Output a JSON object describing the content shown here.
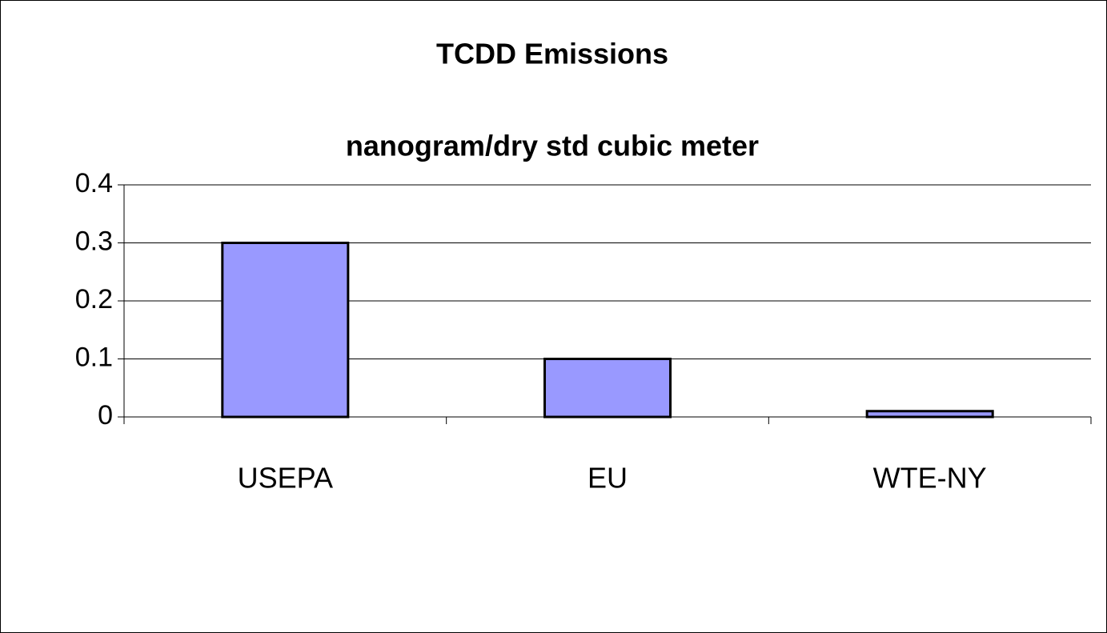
{
  "chart_data": {
    "type": "bar",
    "title": "TCDD Emissions",
    "subtitle": "nanogram/dry std cubic meter",
    "categories": [
      "USEPA",
      "EU",
      "WTE-NY"
    ],
    "values": [
      0.3,
      0.1,
      0.01
    ],
    "color": "#9999ff",
    "ylim": [
      0,
      0.4
    ],
    "yticks": [
      0,
      0.1,
      0.2,
      0.3,
      0.4
    ],
    "grid": true
  }
}
